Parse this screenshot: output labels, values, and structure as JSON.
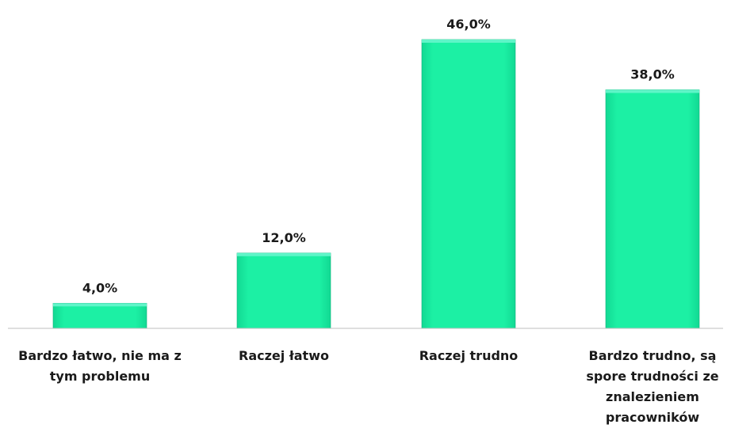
{
  "chart_data": {
    "type": "bar",
    "categories": [
      "Bardzo łatwo, nie ma z tym problemu",
      "Raczej łatwo",
      "Raczej trudno",
      "Bardzo trudno, są spore trudności ze znalezieniem pracowników"
    ],
    "category_lines": [
      [
        "Bardzo łatwo, nie ma z",
        "tym problemu"
      ],
      [
        "Raczej łatwo"
      ],
      [
        "Raczej trudno"
      ],
      [
        "Bardzo trudno, są",
        "spore trudności ze",
        "znalezieniem",
        "pracowników"
      ]
    ],
    "values": [
      4.0,
      12.0,
      46.0,
      38.0
    ],
    "data_labels": [
      "4,0%",
      "12,0%",
      "46,0%",
      "38,0%"
    ],
    "ylim": [
      0,
      46
    ],
    "grid": false,
    "legend": "none",
    "colors": {
      "bar_fill": "#1CF0A4",
      "bar_top": "#5FF5C8",
      "bar_edge": "#10B07A",
      "baseline": "#BFBFBF",
      "text": "#1a1a1a"
    }
  }
}
